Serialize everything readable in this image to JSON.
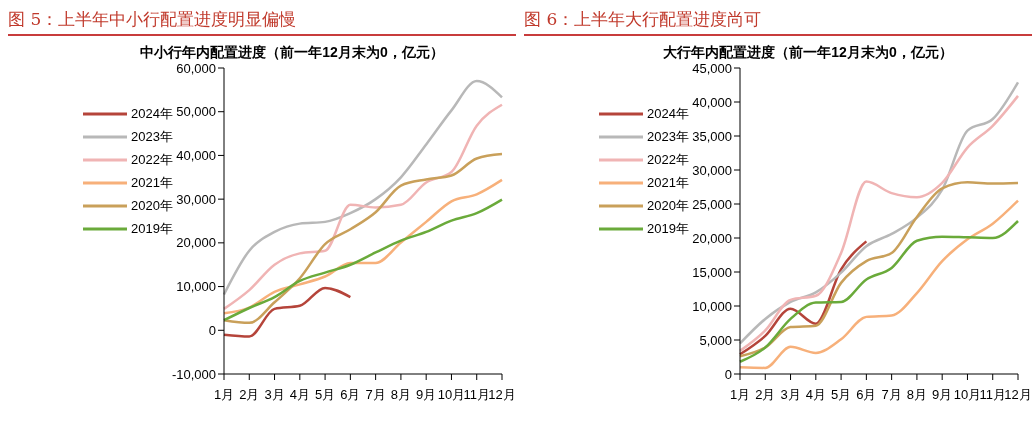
{
  "chart_data": [
    {
      "type": "line",
      "title": "图 5：上半年中小行配置进度明显偏慢",
      "subtitle": "中小行年内配置进度（前一年12月末为0，亿元）",
      "categories": [
        "1月",
        "2月",
        "3月",
        "4月",
        "5月",
        "6月",
        "7月",
        "8月",
        "9月",
        "10月",
        "11月",
        "12月"
      ],
      "ylim": [
        -10000,
        60000
      ],
      "yticks": [
        {
          "value": -10000,
          "label": "-10,000"
        },
        0,
        {
          "value": 10000,
          "label": "10,000"
        },
        {
          "value": 20000,
          "label": "20,000"
        },
        {
          "value": 30000,
          "label": "30,000"
        },
        {
          "value": 40000,
          "label": "40,000"
        },
        {
          "value": 50000,
          "label": "50,000"
        },
        {
          "value": 60000,
          "label": "60,000"
        }
      ],
      "grid": false,
      "legend": "top left",
      "marker": "none",
      "line_style": "solid",
      "series": [
        {
          "name": "2024年",
          "color": "#b5443a",
          "values": [
            -1000,
            -1400,
            4900,
            5600,
            9700,
            7600,
            null,
            null,
            null,
            null,
            null,
            null
          ]
        },
        {
          "name": "2023年",
          "color": "#b8b8b8",
          "values": [
            8200,
            18200,
            22500,
            24400,
            24800,
            26800,
            30000,
            35000,
            42500,
            50300,
            57000,
            53300
          ]
        },
        {
          "name": "2022年",
          "color": "#f0b4b4",
          "values": [
            4900,
            9200,
            15000,
            17600,
            18200,
            28700,
            28100,
            28700,
            33800,
            36200,
            46800,
            51600
          ]
        },
        {
          "name": "2021年",
          "color": "#f7b07a",
          "values": [
            3900,
            5200,
            8800,
            10500,
            12300,
            15400,
            15400,
            20100,
            24800,
            29500,
            31100,
            34400
          ]
        },
        {
          "name": "2020年",
          "color": "#c9a05a",
          "values": [
            2300,
            1700,
            6400,
            11900,
            19700,
            23100,
            27000,
            33100,
            34500,
            35400,
            39300,
            40300
          ]
        },
        {
          "name": "2019年",
          "color": "#6aaa3a",
          "values": [
            2300,
            5100,
            7600,
            11300,
            13200,
            15000,
            17800,
            20500,
            22500,
            25100,
            26800,
            29900
          ]
        }
      ]
    },
    {
      "type": "line",
      "title": "图 6：上半年大行配置进度尚可",
      "subtitle": "大行年内配置进度（前一年12月末为0，亿元）",
      "categories": [
        "1月",
        "2月",
        "3月",
        "4月",
        "5月",
        "6月",
        "7月",
        "8月",
        "9月",
        "10月",
        "11月",
        "12月"
      ],
      "ylim": [
        0,
        45000
      ],
      "yticks": [
        0,
        {
          "value": 5000,
          "label": "5,000"
        },
        {
          "value": 10000,
          "label": "10,000"
        },
        {
          "value": 15000,
          "label": "15,000"
        },
        {
          "value": 20000,
          "label": "20,000"
        },
        {
          "value": 25000,
          "label": "25,000"
        },
        {
          "value": 30000,
          "label": "30,000"
        },
        {
          "value": 35000,
          "label": "35,000"
        },
        {
          "value": 40000,
          "label": "40,000"
        },
        {
          "value": 45000,
          "label": "45,000"
        }
      ],
      "grid": false,
      "legend": "top left",
      "marker": "none",
      "line_style": "solid",
      "series": [
        {
          "name": "2024年",
          "color": "#b5443a",
          "values": [
            2900,
            5600,
            9600,
            7400,
            15400,
            19500,
            null,
            null,
            null,
            null,
            null,
            null
          ]
        },
        {
          "name": "2023年",
          "color": "#b8b8b8",
          "values": [
            4500,
            8100,
            10600,
            12000,
            14900,
            18800,
            20600,
            23000,
            27100,
            35800,
            37500,
            42900
          ]
        },
        {
          "name": "2022年",
          "color": "#f0b4b4",
          "values": [
            3400,
            6400,
            10900,
            11500,
            17800,
            28300,
            26600,
            26000,
            28100,
            33300,
            36500,
            40900
          ]
        },
        {
          "name": "2021年",
          "color": "#f7b07a",
          "values": [
            1000,
            900,
            4000,
            3100,
            5100,
            8400,
            8600,
            11900,
            16600,
            19800,
            22100,
            25500
          ]
        },
        {
          "name": "2020年",
          "color": "#c9a05a",
          "values": [
            2600,
            3900,
            6900,
            7100,
            13400,
            16600,
            17800,
            23100,
            27300,
            28200,
            28000,
            28100
          ]
        },
        {
          "name": "2019年",
          "color": "#6aaa3a",
          "values": [
            1800,
            3900,
            8100,
            10500,
            10600,
            13900,
            15600,
            19600,
            20200,
            20100,
            20000,
            22500
          ]
        }
      ]
    }
  ]
}
